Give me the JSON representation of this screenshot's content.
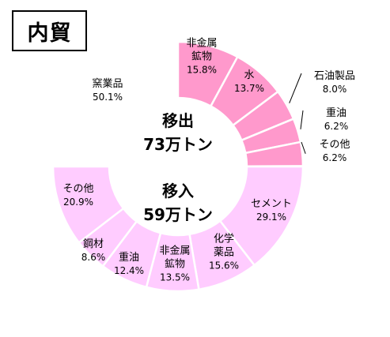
{
  "title": "内貿",
  "chart_data": [
    {
      "type": "pie",
      "ring": "outer",
      "center_label": {
        "line1": "移出",
        "line2": "73万トン"
      },
      "slices": [
        {
          "name_lines": [
            "非金属",
            "鉱物"
          ],
          "value": 15.8,
          "value_label": "15.8%",
          "color": "#FF99CC"
        },
        {
          "name_lines": [
            "水"
          ],
          "value": 13.7,
          "value_label": "13.7%",
          "color": "#FF99CC"
        },
        {
          "name_lines": [
            "石油製品"
          ],
          "value": 8.0,
          "value_label": "8.0%",
          "color": "#FF99CC"
        },
        {
          "name_lines": [
            "重油"
          ],
          "value": 6.2,
          "value_label": "6.2%",
          "color": "#FF99CC"
        },
        {
          "name_lines": [
            "その他"
          ],
          "value": 6.2,
          "value_label": "6.2%",
          "color": "#FF99CC"
        },
        {
          "name_lines": [
            "窯業品"
          ],
          "value": 50.1,
          "value_label": "50.1%",
          "color": "#FF99CC"
        }
      ]
    },
    {
      "type": "pie",
      "ring": "inner",
      "center_label": {
        "line1": "移入",
        "line2": "59万トン"
      },
      "slices": [
        {
          "name_lines": [
            "セメント"
          ],
          "value": 29.1,
          "value_label": "29.1%",
          "color": "#FFCCFF"
        },
        {
          "name_lines": [
            "化学",
            "薬品"
          ],
          "value": 15.6,
          "value_label": "15.6%",
          "color": "#FFCCFF"
        },
        {
          "name_lines": [
            "非金属",
            "鉱物"
          ],
          "value": 13.5,
          "value_label": "13.5%",
          "color": "#FFCCFF"
        },
        {
          "name_lines": [
            "重油"
          ],
          "value": 12.4,
          "value_label": "12.4%",
          "color": "#FFCCFF"
        },
        {
          "name_lines": [
            "鋼材"
          ],
          "value": 8.6,
          "value_label": "8.6%",
          "color": "#FFCCFF"
        },
        {
          "name_lines": [
            "その他"
          ],
          "value": 20.9,
          "value_label": "20.9%",
          "color": "#FFCCFF"
        }
      ]
    }
  ]
}
